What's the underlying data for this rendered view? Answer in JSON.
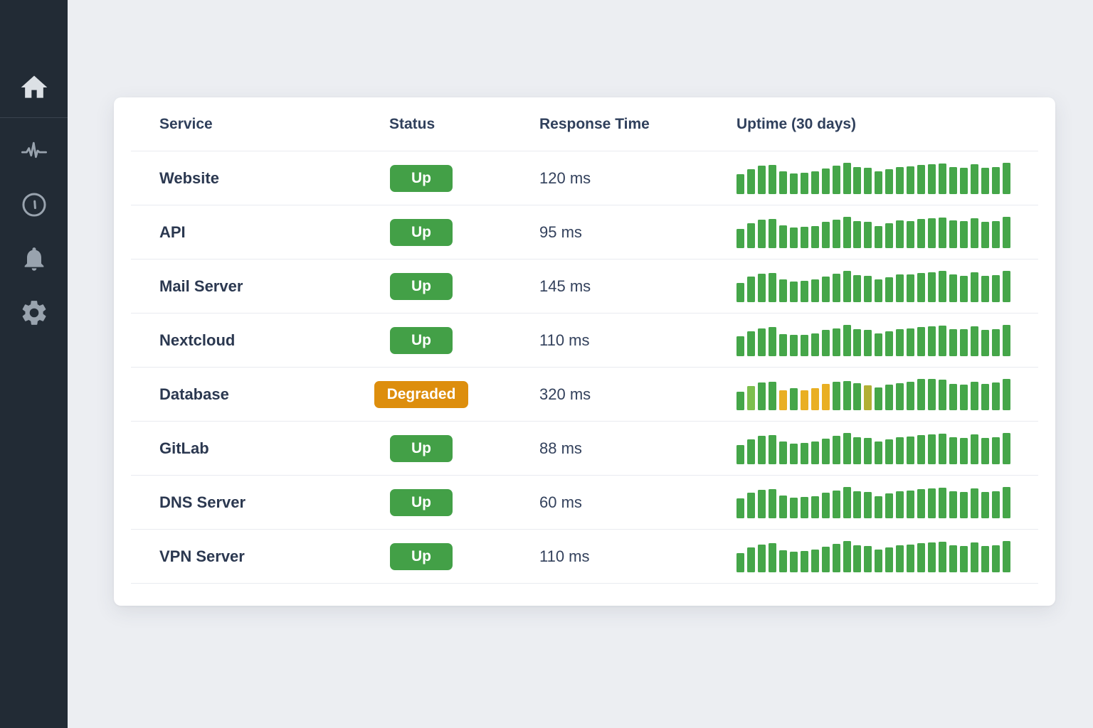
{
  "sidebar": {
    "items": [
      {
        "icon": "home-icon",
        "active": true
      },
      {
        "icon": "activity-icon",
        "active": false
      },
      {
        "icon": "clock-icon",
        "active": false
      },
      {
        "icon": "bell-icon",
        "active": false
      },
      {
        "icon": "gear-icon",
        "active": false
      }
    ]
  },
  "table": {
    "columns": [
      "Service",
      "Status",
      "Response Time",
      "Uptime (30 days)"
    ],
    "rows": [
      {
        "service": "Website",
        "status": "Up",
        "status_type": "up",
        "response": "120 ms",
        "uptime_bars": [
          62,
          79,
          89,
          92,
          71,
          65,
          67,
          71,
          81,
          89,
          100,
          86,
          83,
          72,
          78,
          86,
          88,
          91,
          94,
          96,
          86,
          84,
          95,
          83,
          86,
          100
        ]
      },
      {
        "service": "API",
        "status": "Up",
        "status_type": "up",
        "response": "95 ms",
        "uptime_bars": [
          60,
          78,
          90,
          91,
          72,
          64,
          66,
          70,
          82,
          90,
          100,
          85,
          82,
          70,
          79,
          87,
          86,
          92,
          95,
          97,
          87,
          85,
          94,
          82,
          85,
          100
        ]
      },
      {
        "service": "Mail Server",
        "status": "Up",
        "status_type": "up",
        "response": "145 ms",
        "uptime_bars": [
          61,
          80,
          90,
          93,
          72,
          64,
          66,
          72,
          80,
          90,
          98,
          86,
          84,
          71,
          79,
          87,
          88,
          92,
          95,
          98,
          88,
          84,
          95,
          84,
          86,
          100
        ]
      },
      {
        "service": "Nextcloud",
        "status": "Up",
        "status_type": "up",
        "response": "110 ms",
        "uptime_bars": [
          62,
          78,
          88,
          92,
          70,
          66,
          68,
          72,
          82,
          88,
          100,
          85,
          83,
          71,
          78,
          86,
          87,
          92,
          94,
          96,
          86,
          85,
          94,
          83,
          86,
          100
        ]
      },
      {
        "service": "Database",
        "status": "Degraded",
        "status_type": "degraded",
        "response": "320 ms",
        "uptime_bars": [
          58,
          76,
          88,
          90,
          62,
          70,
          62,
          70,
          84,
          90,
          93,
          85,
          78,
          72,
          80,
          86,
          90,
          98,
          100,
          97,
          84,
          80,
          90,
          84,
          88,
          100
        ],
        "bar_colors": {
          "1": "light_green",
          "4": "amber",
          "6": "amber",
          "7": "amber",
          "8": "amber",
          "12": "olive"
        }
      },
      {
        "service": "GitLab",
        "status": "Up",
        "status_type": "up",
        "response": "88 ms",
        "uptime_bars": [
          61,
          79,
          89,
          92,
          71,
          65,
          67,
          71,
          81,
          89,
          99,
          86,
          83,
          72,
          78,
          86,
          88,
          91,
          94,
          97,
          86,
          84,
          95,
          83,
          86,
          100
        ]
      },
      {
        "service": "DNS Server",
        "status": "Up",
        "status_type": "up",
        "response": "60 ms",
        "uptime_bars": [
          62,
          80,
          90,
          92,
          72,
          64,
          66,
          70,
          80,
          88,
          100,
          86,
          82,
          70,
          78,
          86,
          88,
          92,
          94,
          96,
          86,
          84,
          94,
          82,
          86,
          100
        ]
      },
      {
        "service": "VPN Server",
        "status": "Up",
        "status_type": "up",
        "response": "110 ms",
        "uptime_bars": [
          60,
          78,
          88,
          91,
          70,
          65,
          67,
          71,
          81,
          89,
          100,
          85,
          83,
          71,
          78,
          86,
          87,
          91,
          94,
          96,
          86,
          84,
          95,
          83,
          85,
          100
        ]
      }
    ]
  },
  "colors": {
    "green": "#45A649",
    "light_green": "#7DBF4E",
    "amber": "#E9AF23",
    "olive": "#B2AF35",
    "up_badge": "#43A047",
    "degraded_badge": "#DD8E0D",
    "sidebar_bg": "#222B35",
    "page_bg": "#ECEEF2"
  }
}
